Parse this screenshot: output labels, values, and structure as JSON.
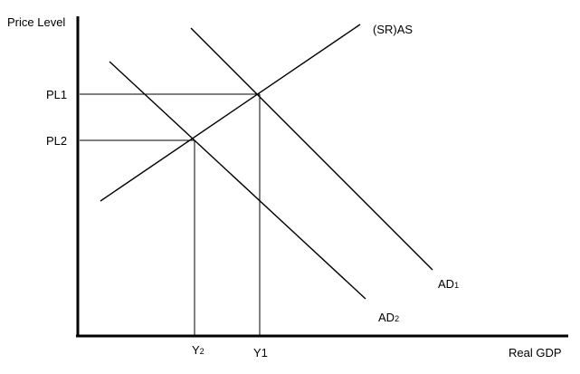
{
  "axes": {
    "y_label": "Price Level",
    "x_label": "Real GDP"
  },
  "price_levels": {
    "pl1": "PL1",
    "pl2": "PL2"
  },
  "output_levels": {
    "y1": "Y1",
    "y2_base": "Y",
    "y2_sub": "2"
  },
  "curves": {
    "sras": "(SR)AS",
    "ad1_base": "AD",
    "ad1_sub": "1",
    "ad2_base": "AD",
    "ad2_sub": "2"
  },
  "colors": {
    "lines": "#000000",
    "background": "#ffffff"
  }
}
